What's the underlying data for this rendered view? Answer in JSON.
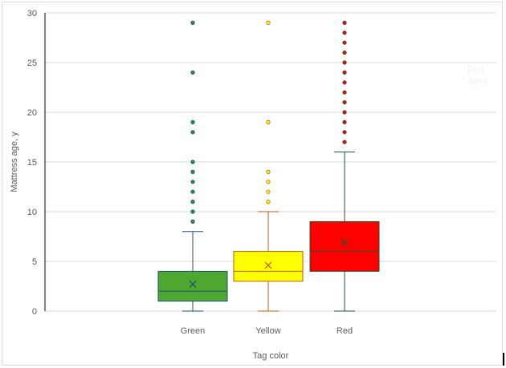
{
  "chart_data": {
    "type": "box",
    "title": "",
    "xlabel": "Tag color",
    "ylabel": "Mattress age, y",
    "ylim": [
      0,
      30
    ],
    "yticks": [
      0,
      5,
      10,
      15,
      20,
      25,
      30
    ],
    "grid": true,
    "legend": "none",
    "categories": [
      "Green",
      "Yellow",
      "Red"
    ],
    "series": [
      {
        "name": "Green",
        "fill": "#4ea72e",
        "stroke": "#1f4e79",
        "min": 0,
        "q1": 1,
        "median": 2,
        "mean": 2.7,
        "q3": 4,
        "max": 8,
        "outliers": [
          9,
          10,
          11,
          12,
          13,
          14,
          15,
          18,
          19,
          24,
          29
        ]
      },
      {
        "name": "Yellow",
        "fill": "#ffff00",
        "stroke": "#c55a11",
        "min": 0,
        "q1": 3,
        "median": 4,
        "mean": 4.6,
        "q3": 6,
        "max": 10,
        "outliers": [
          11,
          12,
          13,
          14,
          19,
          29
        ]
      },
      {
        "name": "Red",
        "fill": "#ff0000",
        "stroke": "#1e5631",
        "min": 0,
        "q1": 4,
        "median": 6,
        "mean": 6.9,
        "q3": 9,
        "max": 16,
        "outliers": [
          17,
          18,
          19,
          20,
          21,
          22,
          23,
          24,
          25,
          26,
          27,
          28,
          29
        ]
      }
    ]
  },
  "labels": {
    "ghost_tooltip": "Plot Area"
  }
}
